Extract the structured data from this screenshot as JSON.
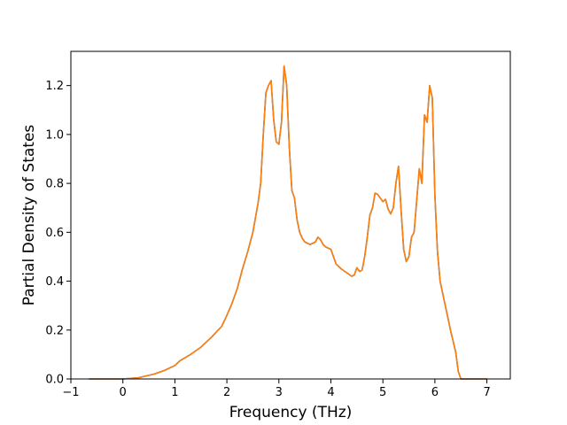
{
  "chart_data": {
    "type": "line",
    "title": "",
    "xlabel": "Frequency (THz)",
    "ylabel": "Partial Density of States",
    "xlim": [
      -1.0,
      7.45
    ],
    "ylim": [
      0.0,
      1.34
    ],
    "xticks": [
      {
        "value": -1,
        "label": "−1"
      },
      {
        "value": 0,
        "label": "0"
      },
      {
        "value": 1,
        "label": "1"
      },
      {
        "value": 2,
        "label": "2"
      },
      {
        "value": 3,
        "label": "3"
      },
      {
        "value": 4,
        "label": "4"
      },
      {
        "value": 5,
        "label": "5"
      },
      {
        "value": 6,
        "label": "6"
      },
      {
        "value": 7,
        "label": "7"
      }
    ],
    "yticks": [
      {
        "value": 0.0,
        "label": "0.0"
      },
      {
        "value": 0.2,
        "label": "0.2"
      },
      {
        "value": 0.4,
        "label": "0.4"
      },
      {
        "value": 0.6,
        "label": "0.6"
      },
      {
        "value": 0.8,
        "label": "0.8"
      },
      {
        "value": 1.0,
        "label": "1.0"
      },
      {
        "value": 1.2,
        "label": "1.2"
      }
    ],
    "grid": false,
    "legend": "none",
    "series": [
      {
        "color": "#1f77b4",
        "x": [
          -0.65,
          0.0,
          0.3,
          0.6,
          0.8,
          1.0,
          1.1,
          1.3,
          1.5,
          1.7,
          1.9,
          2.0,
          2.1,
          2.2,
          2.25,
          2.3,
          2.4,
          2.5,
          2.6,
          2.65,
          2.7,
          2.75,
          2.8,
          2.85,
          2.9,
          2.95,
          3.0,
          3.05,
          3.1,
          3.15,
          3.2,
          3.25,
          3.3,
          3.35,
          3.4,
          3.45,
          3.5,
          3.6,
          3.7,
          3.75,
          3.8,
          3.85,
          3.9,
          4.0,
          4.05,
          4.1,
          4.2,
          4.3,
          4.4,
          4.45,
          4.5,
          4.55,
          4.6,
          4.65,
          4.7,
          4.75,
          4.8,
          4.85,
          4.9,
          4.95,
          5.0,
          5.05,
          5.1,
          5.15,
          5.2,
          5.25,
          5.3,
          5.35,
          5.4,
          5.45,
          5.5,
          5.55,
          5.6,
          5.65,
          5.7,
          5.75,
          5.8,
          5.85,
          5.9,
          5.95,
          6.0,
          6.05,
          6.1,
          6.2,
          6.3,
          6.4,
          6.45,
          6.5,
          7.0
        ],
        "values": [
          0.0,
          0.0,
          0.005,
          0.02,
          0.035,
          0.055,
          0.075,
          0.1,
          0.13,
          0.17,
          0.215,
          0.26,
          0.31,
          0.37,
          0.41,
          0.45,
          0.52,
          0.6,
          0.72,
          0.8,
          1.0,
          1.17,
          1.2,
          1.22,
          1.06,
          0.97,
          0.96,
          1.05,
          1.28,
          1.2,
          0.95,
          0.77,
          0.74,
          0.65,
          0.6,
          0.575,
          0.56,
          0.55,
          0.56,
          0.58,
          0.57,
          0.55,
          0.54,
          0.53,
          0.5,
          0.47,
          0.45,
          0.435,
          0.42,
          0.425,
          0.455,
          0.44,
          0.445,
          0.5,
          0.58,
          0.67,
          0.7,
          0.76,
          0.755,
          0.74,
          0.725,
          0.735,
          0.695,
          0.675,
          0.7,
          0.8,
          0.87,
          0.69,
          0.53,
          0.48,
          0.5,
          0.58,
          0.6,
          0.73,
          0.86,
          0.8,
          1.08,
          1.05,
          1.2,
          1.15,
          0.75,
          0.52,
          0.4,
          0.3,
          0.2,
          0.11,
          0.03,
          0.0,
          0.0
        ]
      },
      {
        "color": "#ff7f0e",
        "x": [
          -0.65,
          0.0,
          0.3,
          0.6,
          0.8,
          1.0,
          1.1,
          1.3,
          1.5,
          1.7,
          1.9,
          2.0,
          2.1,
          2.2,
          2.25,
          2.3,
          2.4,
          2.5,
          2.6,
          2.65,
          2.7,
          2.75,
          2.8,
          2.85,
          2.9,
          2.95,
          3.0,
          3.05,
          3.1,
          3.15,
          3.2,
          3.25,
          3.3,
          3.35,
          3.4,
          3.45,
          3.5,
          3.6,
          3.7,
          3.75,
          3.8,
          3.85,
          3.9,
          4.0,
          4.05,
          4.1,
          4.2,
          4.3,
          4.4,
          4.45,
          4.5,
          4.55,
          4.6,
          4.65,
          4.7,
          4.75,
          4.8,
          4.85,
          4.9,
          4.95,
          5.0,
          5.05,
          5.1,
          5.15,
          5.2,
          5.25,
          5.3,
          5.35,
          5.4,
          5.45,
          5.5,
          5.55,
          5.6,
          5.65,
          5.7,
          5.75,
          5.8,
          5.85,
          5.9,
          5.95,
          6.0,
          6.05,
          6.1,
          6.2,
          6.3,
          6.4,
          6.45,
          6.5,
          7.0
        ],
        "values": [
          0.0,
          0.0,
          0.005,
          0.02,
          0.035,
          0.055,
          0.075,
          0.1,
          0.13,
          0.17,
          0.215,
          0.26,
          0.31,
          0.37,
          0.41,
          0.45,
          0.52,
          0.6,
          0.72,
          0.8,
          1.0,
          1.17,
          1.2,
          1.22,
          1.06,
          0.97,
          0.96,
          1.05,
          1.28,
          1.2,
          0.95,
          0.77,
          0.74,
          0.65,
          0.6,
          0.575,
          0.56,
          0.55,
          0.56,
          0.58,
          0.57,
          0.55,
          0.54,
          0.53,
          0.5,
          0.47,
          0.45,
          0.435,
          0.42,
          0.425,
          0.455,
          0.44,
          0.445,
          0.5,
          0.58,
          0.67,
          0.7,
          0.76,
          0.755,
          0.74,
          0.725,
          0.735,
          0.695,
          0.675,
          0.7,
          0.8,
          0.87,
          0.69,
          0.53,
          0.48,
          0.5,
          0.58,
          0.6,
          0.73,
          0.86,
          0.8,
          1.08,
          1.05,
          1.2,
          1.15,
          0.75,
          0.52,
          0.4,
          0.3,
          0.2,
          0.11,
          0.03,
          0.0,
          0.0
        ]
      }
    ]
  }
}
